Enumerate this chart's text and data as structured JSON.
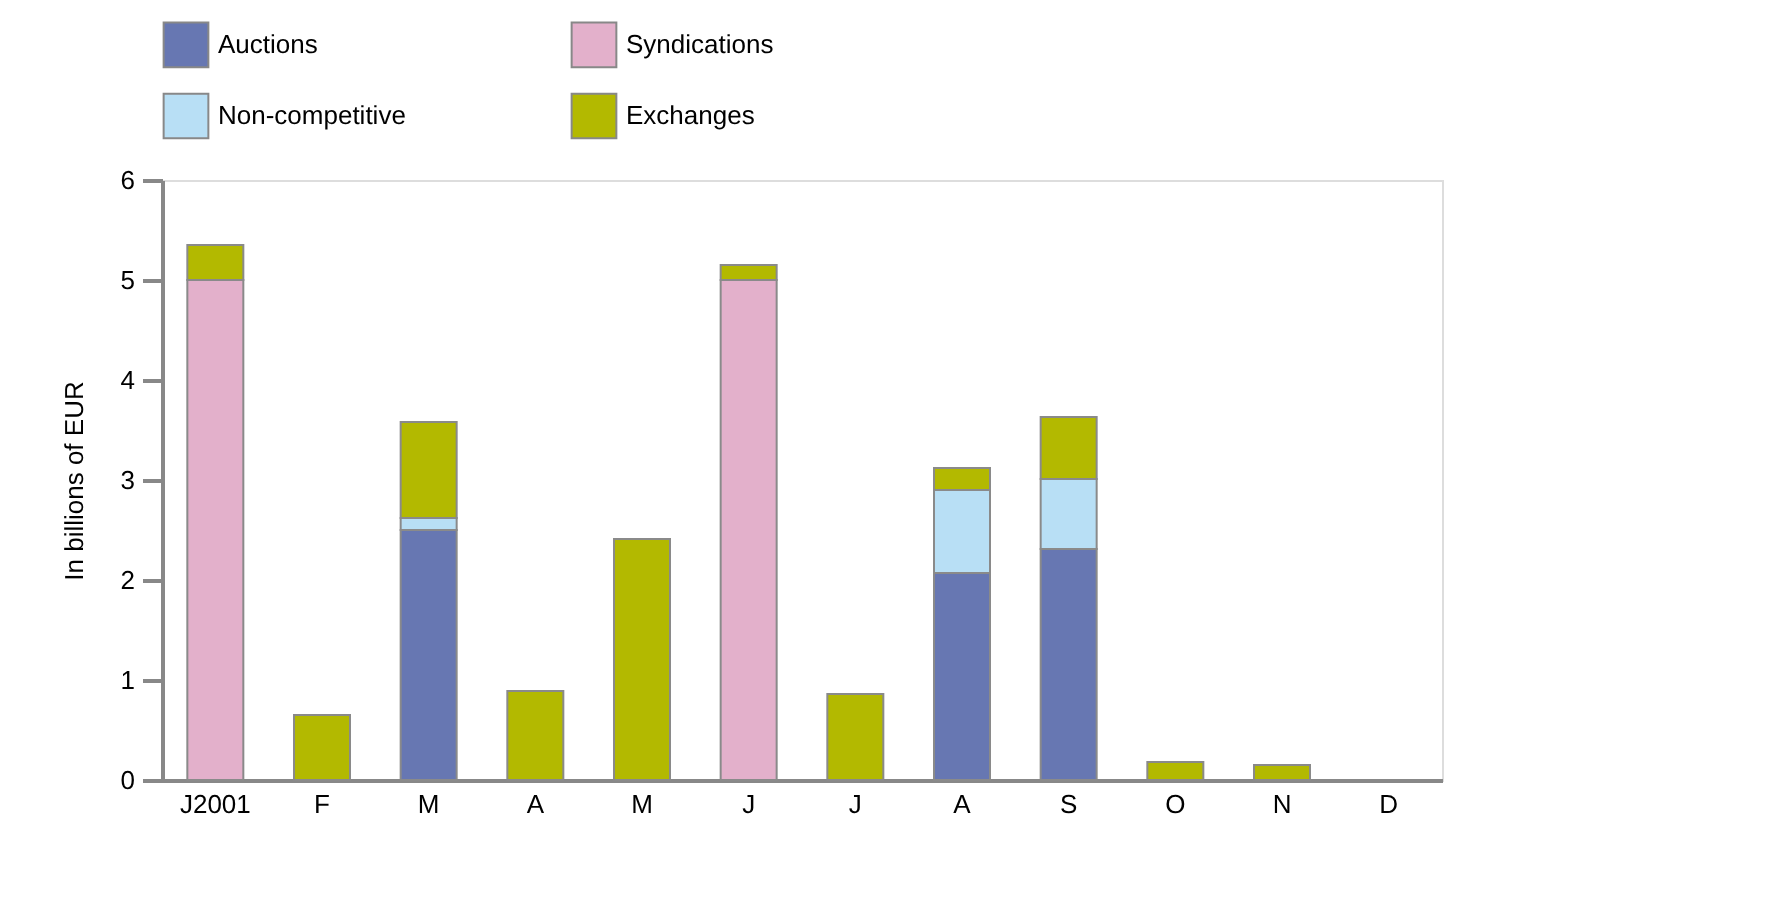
{
  "chart_data": {
    "type": "bar",
    "stacked": true,
    "ylabel": "In billions of EUR",
    "categories": [
      "J2001",
      "F",
      "M",
      "A",
      "M",
      "J",
      "J",
      "A",
      "S",
      "O",
      "N",
      "D"
    ],
    "series": [
      {
        "name": "Auctions",
        "color": "#6777b2",
        "values": [
          null,
          null,
          2.5,
          null,
          null,
          null,
          null,
          2.07,
          2.31,
          null,
          null,
          null
        ]
      },
      {
        "name": "Syndications",
        "color": "#e3b0cb",
        "values": [
          5.0,
          null,
          null,
          null,
          null,
          5.0,
          null,
          null,
          null,
          null,
          null,
          null
        ]
      },
      {
        "name": "Non-competitive",
        "color": "#b8dff5",
        "values": [
          null,
          null,
          0.12,
          null,
          null,
          null,
          null,
          0.83,
          0.7,
          null,
          null,
          null
        ]
      },
      {
        "name": "Exchanges",
        "color": "#b3b900",
        "values": [
          0.35,
          0.65,
          0.96,
          0.89,
          2.41,
          0.15,
          0.86,
          0.22,
          0.62,
          0.18,
          0.15,
          null
        ]
      }
    ],
    "ylim": [
      0,
      6
    ],
    "yticks": [
      0,
      1,
      2,
      3,
      4,
      5,
      6
    ],
    "grid": false,
    "legend": "top"
  }
}
